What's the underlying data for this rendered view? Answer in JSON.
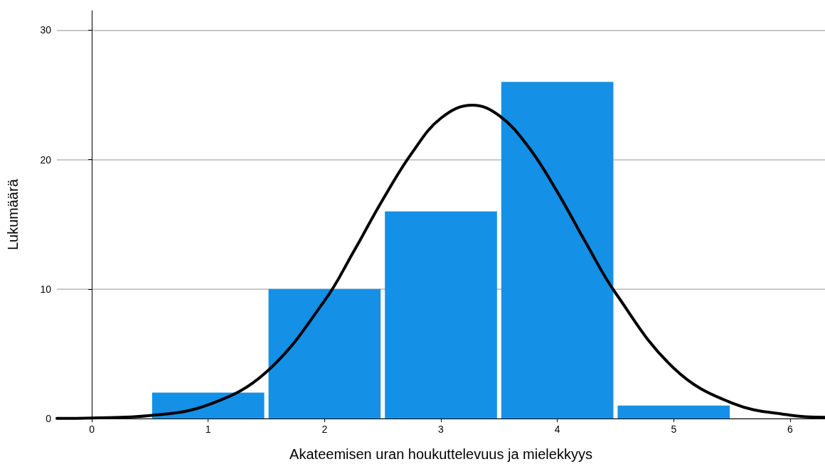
{
  "chart_data": {
    "type": "histogram",
    "xlabel": "Akateemisen uran houkuttelevuus ja mielekkyys",
    "ylabel": "Lukumäärä",
    "bins": [
      0.5,
      1.5,
      2.5,
      3.5,
      4.5,
      5.5
    ],
    "values": [
      2,
      10,
      16,
      26,
      1
    ],
    "color": "#1490e6",
    "series": [
      {
        "type": "line",
        "color": "#000000",
        "x": [
          -0.3,
          0,
          0.5,
          1,
          1.5,
          2,
          2.25,
          2.5,
          2.75,
          3,
          3.27,
          3.5,
          3.75,
          4,
          4.25,
          4.5,
          5,
          5.5,
          6,
          6.3
        ],
        "values": [
          0.01,
          0.04,
          0.23,
          1.06,
          3.6,
          9.1,
          12.9,
          16.9,
          20.5,
          23.2,
          24.2,
          23.4,
          21.0,
          17.5,
          13.5,
          9.7,
          3.9,
          1.2,
          0.26,
          0.09
        ]
      }
    ],
    "xlim": [
      -0.3,
      6.3
    ],
    "xticks": [
      0,
      1,
      2,
      3,
      4,
      5,
      6
    ],
    "ylim": [
      0,
      31.5
    ],
    "yticks": [
      0,
      10,
      20,
      30
    ],
    "grid": "y",
    "marker": "none",
    "line_style": "solid"
  }
}
